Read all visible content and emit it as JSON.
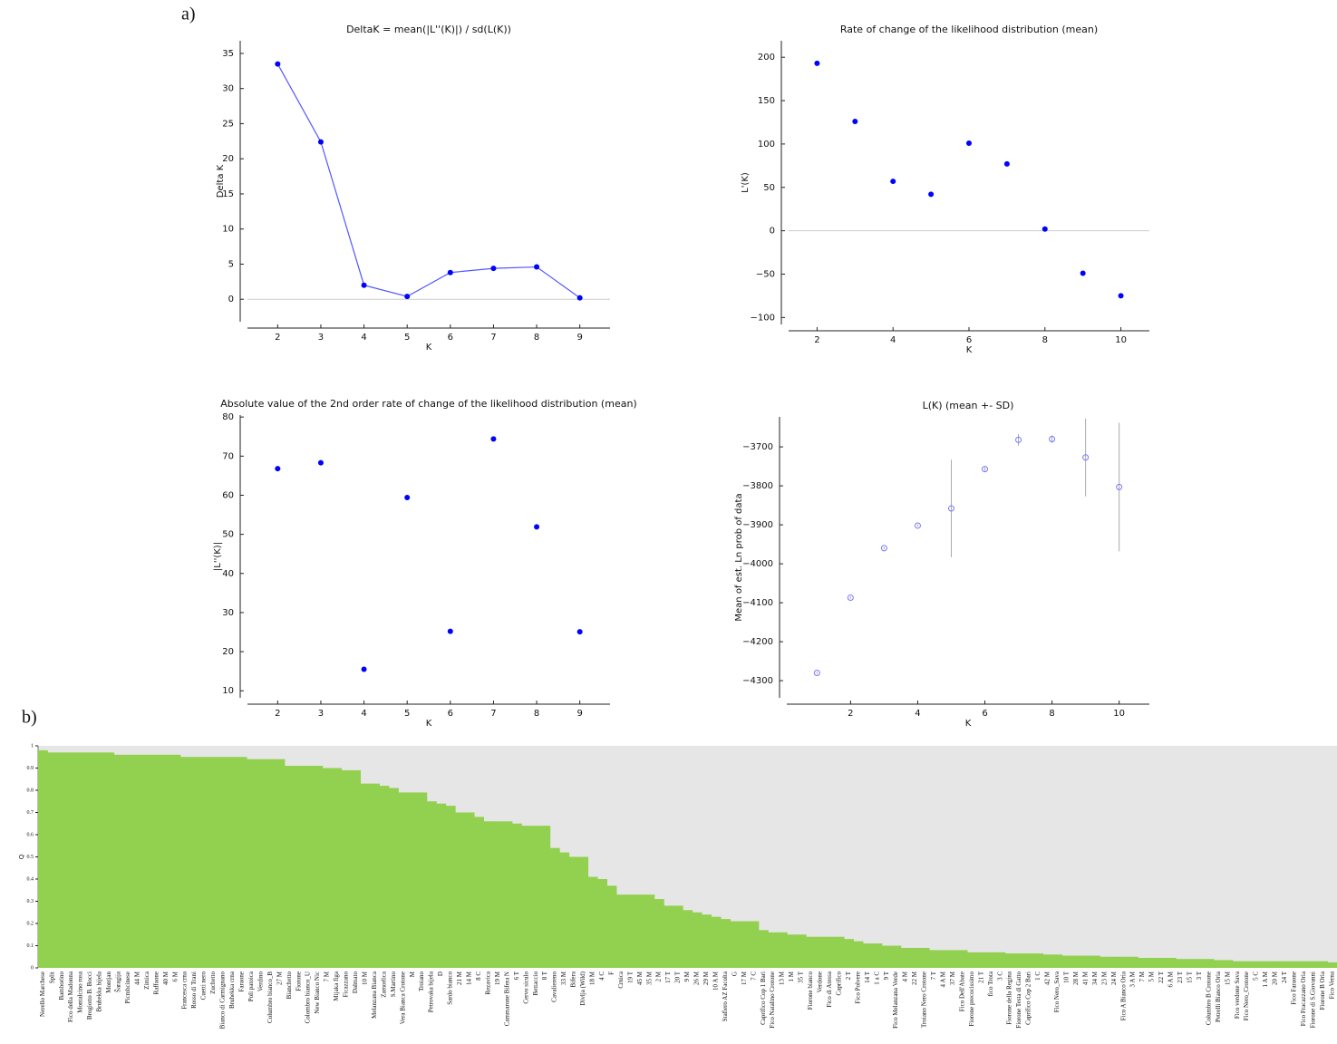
{
  "panel_labels": [
    "a)",
    "b)"
  ],
  "chart_data": [
    {
      "type": "line",
      "title": "DeltaK = mean(|L''(K)|) / sd(L(K))",
      "x_label": "K",
      "y_label": "Delta K",
      "x": [
        2,
        3,
        4,
        5,
        6,
        7,
        8,
        9
      ],
      "values": [
        33.5,
        22.4,
        2.0,
        0.4,
        3.8,
        4.4,
        4.6,
        0.2
      ],
      "color": "#5555ff",
      "marker_color": "#0000ff",
      "xlim": [
        1.3,
        9.7
      ],
      "xticks": [
        2,
        3,
        4,
        5,
        6,
        7,
        8,
        9
      ],
      "ylim": [
        -3.2,
        36.8
      ],
      "yticks": [
        0,
        5,
        10,
        15,
        20,
        25,
        30,
        35
      ],
      "zero_line": true
    },
    {
      "type": "scatter",
      "title": "Rate of change of the likelihood distribution (mean)",
      "x_label": "K",
      "y_label": "L'(K)",
      "x": [
        2,
        3,
        4,
        5,
        6,
        7,
        8,
        9,
        10
      ],
      "values": [
        193,
        126,
        57,
        42,
        101,
        77,
        2,
        -49,
        -75
      ],
      "marker_color": "#0000ff",
      "xlim": [
        1.25,
        10.75
      ],
      "xticks": [
        2,
        4,
        6,
        8,
        10
      ],
      "ylim": [
        -108,
        219
      ],
      "yticks": [
        {
          "value": -100,
          "label": "−100"
        },
        {
          "value": -50,
          "label": "−50"
        },
        0,
        50,
        100,
        150,
        200
      ],
      "zero_line": true
    },
    {
      "type": "scatter",
      "title": "Absolute value of the 2nd order rate of change of the likelihood distribution (mean)",
      "x_label": "K",
      "y_label": "|L''(K)|",
      "x": [
        2,
        3,
        4,
        5,
        6,
        7,
        8,
        9
      ],
      "values": [
        66.8,
        68.3,
        15.5,
        59.4,
        25.2,
        74.4,
        51.9,
        25.1
      ],
      "marker_color": "#0000ff",
      "xlim": [
        1.3,
        9.7
      ],
      "xticks": [
        2,
        3,
        4,
        5,
        6,
        7,
        8,
        9
      ],
      "ylim": [
        8.2,
        80.5
      ],
      "yticks": [
        10,
        20,
        30,
        40,
        50,
        60,
        70,
        80
      ],
      "zero_line": false
    },
    {
      "type": "errorbar",
      "title": "L(K) (mean +- SD)",
      "x_label": "K",
      "y_label": "Mean of est. Ln prob of data",
      "x": [
        1,
        2,
        3,
        4,
        5,
        6,
        7,
        8,
        9,
        10
      ],
      "values": [
        -4280,
        -4087,
        -3960,
        -3902,
        -3858,
        -3757,
        -3682,
        -3680,
        -3727,
        -3803
      ],
      "errors": [
        3,
        3,
        3,
        3,
        125,
        5,
        15,
        10,
        100,
        165
      ],
      "marker_color": "#7777ff",
      "error_color": "#aaaaaa",
      "xlim": [
        0.1,
        10.9
      ],
      "xticks": [
        2,
        4,
        6,
        8,
        10
      ],
      "ylim": [
        -4344,
        -3623
      ],
      "yticks": [
        {
          "value": -4300,
          "label": "−4300"
        },
        {
          "value": -4200,
          "label": "−4200"
        },
        {
          "value": -4100,
          "label": "−4100"
        },
        {
          "value": -4000,
          "label": "−4000"
        },
        {
          "value": -3900,
          "label": "−3900"
        },
        {
          "value": -3800,
          "label": "−3800"
        },
        {
          "value": -3700,
          "label": "−3700"
        }
      ]
    },
    {
      "type": "bar",
      "y_label": "Q",
      "color": "#92d050",
      "background": "#e6e6e6",
      "ylim": [
        0,
        1
      ],
      "yticks": [
        0,
        0.1,
        0.2,
        0.3,
        0.4,
        0.5,
        0.6,
        0.7,
        0.8,
        0.9,
        1
      ],
      "categories": [
        "Nerello Marchese",
        "Split",
        "Bamborino",
        "Fico della Madonna",
        "Montalcino rosa",
        "Brogiotto B. Bocci",
        "Bruhekka bijela",
        "Montjan",
        "Šaragija",
        "Picmbcinese",
        "44 M",
        "Zimica",
        "Raffaone",
        "40 M",
        "6 M",
        "Francesca crna",
        "Rosso di Trani",
        "Cuetti nero",
        "Zuchetto",
        "Bianco di Carmignano",
        "Bruhekka crna",
        "Faraone",
        "Poli patoica",
        "Verdino",
        "Columbro bianco_B",
        "27 M",
        "Bianchetto",
        "Fiorone",
        "Colombro bianco_U",
        "New Bianco Nic",
        "7 M",
        "Mijaka figa",
        "Ficazzano",
        "Dalmato",
        "10 M",
        "Melanzana Bianca",
        "Zamorlica",
        "S.Martino",
        "Vera Bianca Crotone",
        "M",
        "Troiano",
        "Petrovaka bijela",
        "D",
        "Sardo bianco",
        "21 M",
        "14 M",
        "8 C",
        "Rezavica",
        "19 M",
        "Cammarone Bifera N",
        "6 T",
        "Cervo siculo",
        "Bettaccio",
        "8 T",
        "Cavaliereno",
        "33 M",
        "Bifera",
        "Divlja (Wild)",
        "18 M",
        "4 C",
        "F",
        "Crnica",
        "19 T",
        "45 M",
        "35 M",
        "2 M",
        "17 T",
        "20 T",
        "9 M",
        "26 M",
        "29 M",
        "10 A M",
        "Stafiero AZ Facolta",
        "G",
        "17 M",
        "7 C",
        "Caprifico Cop 1 Bari",
        "Fico Natalino Crotone",
        "13 M",
        "1 M",
        "35 T",
        "Fiorone bianco",
        "Verdone",
        "Fico di Atessa",
        "Caprifico",
        "2 T",
        "Fico Polvere",
        "14 T",
        "1 a C",
        "9 T",
        "Fico Melanzana Verde",
        "4 M",
        "22 M",
        "Troiano Nero Crotone",
        "7 T",
        "4 A M",
        "37 M",
        "Fico Dell'Abate",
        "Fiorone precocissimo",
        "21 T",
        "fico Trota",
        "3 C",
        "Fiorone della Regina",
        "Fiorone Testa di Gatto",
        "Caprifico Cop 2 Bari",
        "1 C",
        "42 M",
        "Fico Nero_Sava",
        "10 T",
        "28 M",
        "41 M",
        "34 M",
        "23 M",
        "24 M",
        "Fico A Bianco Oria",
        "3 A M",
        "7 M",
        "5 M",
        "22 T",
        "6 A M",
        "23 T",
        "15 T",
        "3 T",
        "Columbro B Crotone",
        "Petrelli Bianco Oria",
        "15 M",
        "Fico verdone Sava",
        "Fico Nero_Crotone",
        "5 C",
        "1 A M",
        "20 M",
        "24 T",
        "Fico Faraone",
        "Fico Fracazzano Oria",
        "Fiorone di S.Giovanni",
        "Fiorone B Oria",
        "Fico Verna"
      ],
      "values": [
        0.98,
        0.97,
        0.97,
        0.97,
        0.97,
        0.97,
        0.97,
        0.97,
        0.96,
        0.96,
        0.96,
        0.96,
        0.96,
        0.96,
        0.96,
        0.95,
        0.95,
        0.95,
        0.95,
        0.95,
        0.95,
        0.95,
        0.94,
        0.94,
        0.94,
        0.94,
        0.91,
        0.91,
        0.91,
        0.91,
        0.9,
        0.9,
        0.89,
        0.89,
        0.83,
        0.83,
        0.82,
        0.81,
        0.79,
        0.79,
        0.79,
        0.75,
        0.74,
        0.73,
        0.7,
        0.7,
        0.68,
        0.66,
        0.66,
        0.66,
        0.65,
        0.64,
        0.64,
        0.64,
        0.54,
        0.52,
        0.5,
        0.5,
        0.41,
        0.4,
        0.37,
        0.33,
        0.33,
        0.33,
        0.33,
        0.31,
        0.28,
        0.28,
        0.26,
        0.25,
        0.24,
        0.23,
        0.22,
        0.21,
        0.21,
        0.21,
        0.17,
        0.16,
        0.16,
        0.15,
        0.15,
        0.14,
        0.14,
        0.14,
        0.14,
        0.13,
        0.12,
        0.11,
        0.11,
        0.1,
        0.1,
        0.09,
        0.09,
        0.09,
        0.08,
        0.08,
        0.08,
        0.08,
        0.07,
        0.07,
        0.07,
        0.07,
        0.065,
        0.065,
        0.065,
        0.065,
        0.06,
        0.06,
        0.055,
        0.055,
        0.055,
        0.055,
        0.05,
        0.05,
        0.05,
        0.05,
        0.045,
        0.045,
        0.045,
        0.045,
        0.04,
        0.04,
        0.04,
        0.04,
        0.035,
        0.035,
        0.03,
        0.03,
        0.03,
        0.03,
        0.03,
        0.03,
        0.03,
        0.03,
        0.03,
        0.03,
        0.025
      ]
    }
  ]
}
